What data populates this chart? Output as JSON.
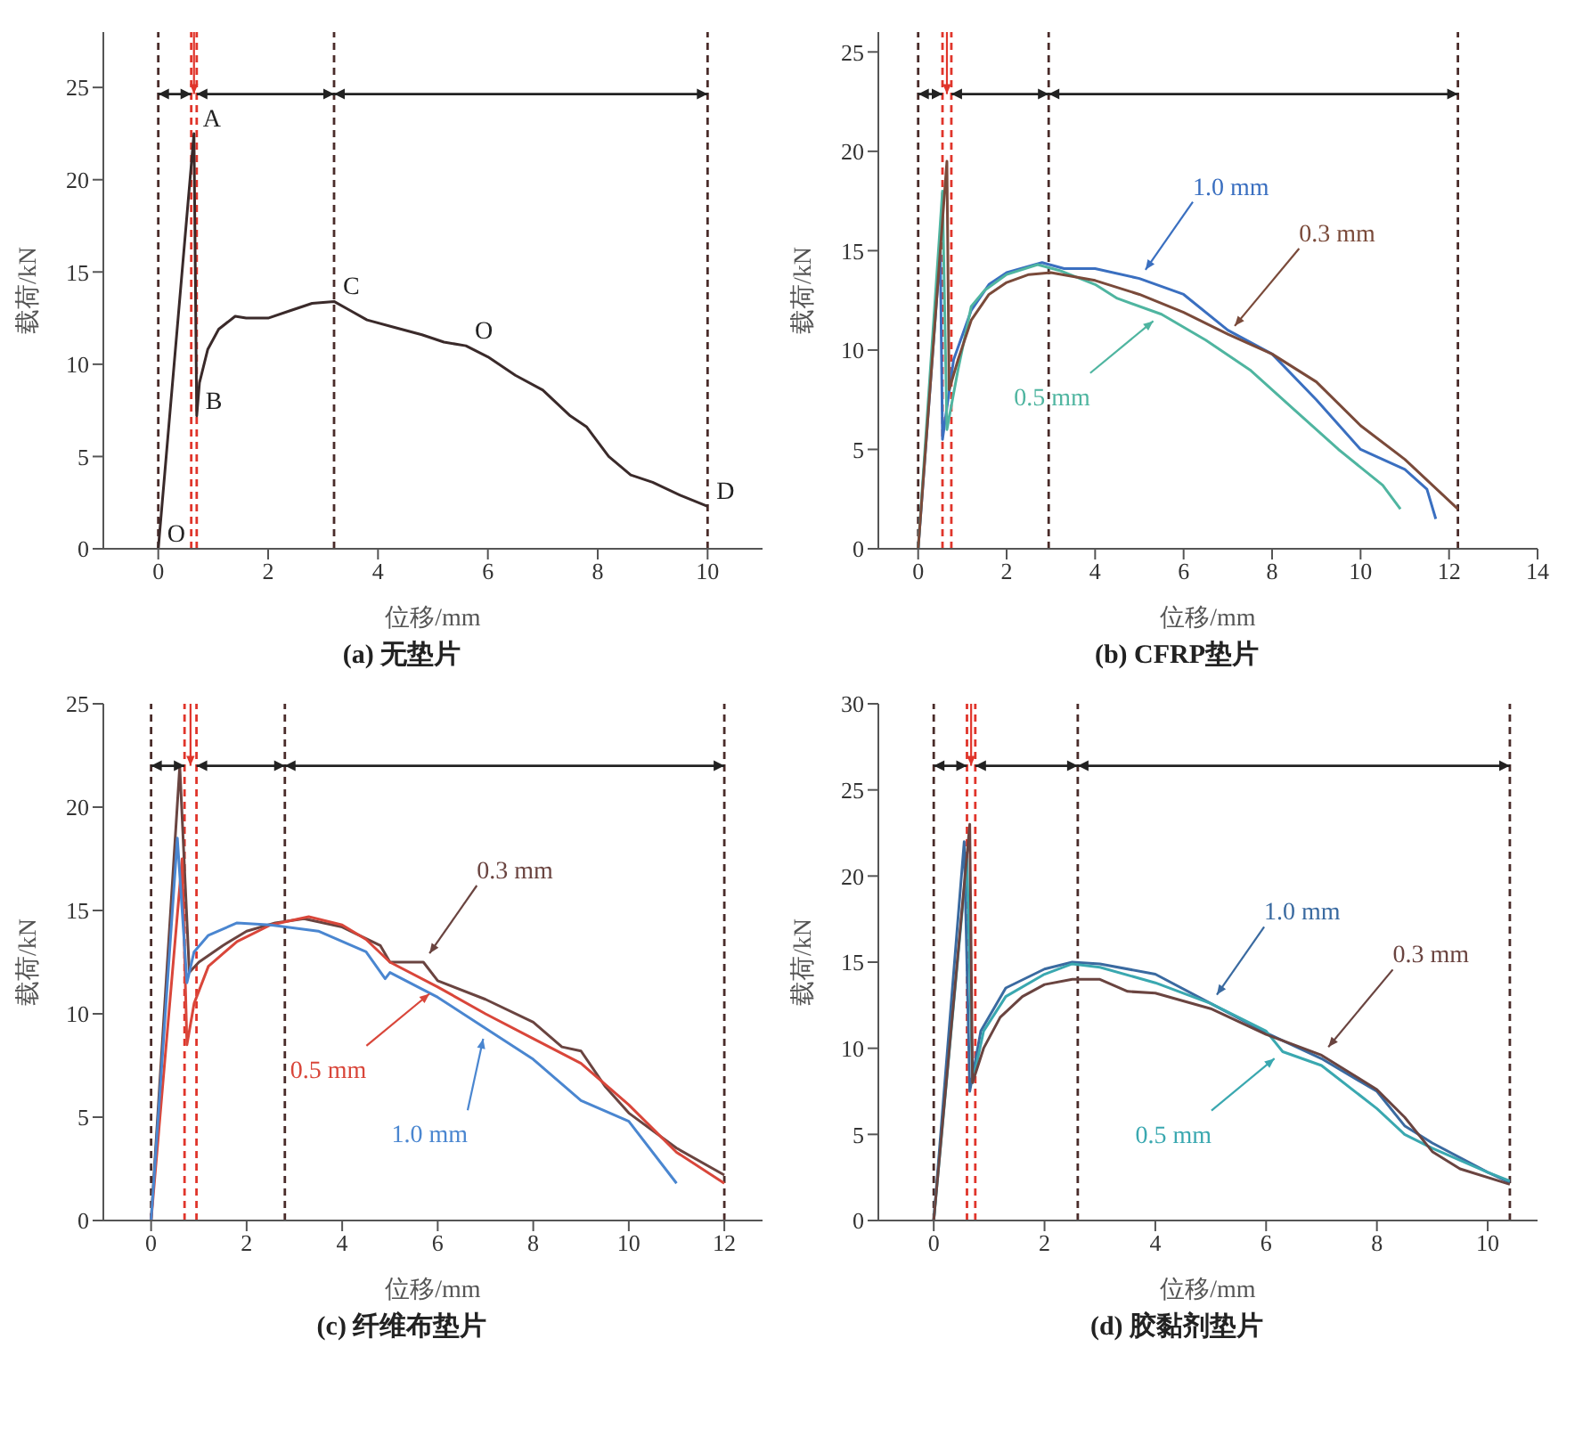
{
  "chart_data": [
    {
      "type": "line",
      "title": "(a) 无垫片",
      "xlabel": "位移/mm",
      "ylabel": "载荷/kN",
      "xlim": [
        -1,
        11
      ],
      "xticks": [
        0,
        2,
        4,
        6,
        8,
        10
      ],
      "ylim": [
        0,
        28
      ],
      "yticks": [
        0,
        5,
        10,
        15,
        20,
        25
      ],
      "series": [
        {
          "color": "#3a2a2a",
          "x": [
            0,
            0.65,
            0.7,
            0.75,
            0.9,
            1.1,
            1.4,
            1.6,
            2,
            2.4,
            2.8,
            3.2,
            3.5,
            3.8,
            4.3,
            4.8,
            5.2,
            5.6,
            6,
            6.5,
            7,
            7.5,
            7.8,
            8.2,
            8.6,
            9,
            9.5,
            10
          ],
          "values": [
            0,
            22.5,
            7.2,
            9,
            10.8,
            11.9,
            12.6,
            12.5,
            12.5,
            12.9,
            13.3,
            13.4,
            12.9,
            12.4,
            12,
            11.6,
            11.2,
            11,
            10.4,
            9.4,
            8.6,
            7.2,
            6.6,
            5,
            4,
            3.6,
            2.9,
            2.3
          ]
        }
      ],
      "ref_lines": [
        {
          "axis": "x",
          "value": 0,
          "color": "#4a2c2a",
          "line_style": "dashed"
        },
        {
          "axis": "x",
          "value": 0.6,
          "color": "#e0352b",
          "line_style": "dashed"
        },
        {
          "axis": "x",
          "value": 0.7,
          "color": "#e0352b",
          "line_style": "dashed"
        },
        {
          "axis": "x",
          "value": 3.2,
          "color": "#4a2c2a",
          "line_style": "dashed"
        },
        {
          "axis": "x",
          "value": 10,
          "color": "#4a2c2a",
          "line_style": "dashed"
        }
      ],
      "annotations": [
        {
          "text": "O",
          "x": 0,
          "y": 0
        },
        {
          "text": "A",
          "x": 0.65,
          "y": 22.5
        },
        {
          "text": "B",
          "x": 0.7,
          "y": 7.2
        },
        {
          "text": "C",
          "x": 3.2,
          "y": 13.4
        },
        {
          "text": "O",
          "x": 5.6,
          "y": 11
        },
        {
          "text": "D",
          "x": 10,
          "y": 2.3
        }
      ]
    },
    {
      "type": "line",
      "title": "(b) CFRP垫片",
      "xlabel": "位移/mm",
      "ylabel": "载荷/kN",
      "xlim": [
        -0.9,
        14
      ],
      "xticks": [
        0,
        2,
        4,
        6,
        8,
        10,
        12,
        14
      ],
      "ylim": [
        0,
        26
      ],
      "yticks": [
        0,
        5,
        10,
        15,
        20,
        25
      ],
      "series": [
        {
          "name": "1.0 mm",
          "color": "#3a6fc0",
          "x": [
            0,
            0.5,
            0.55,
            0.8,
            1.2,
            1.6,
            2,
            2.8,
            3.3,
            4,
            5,
            6,
            7,
            8,
            9,
            10,
            11,
            11.5,
            11.7
          ],
          "values": [
            0,
            15,
            5.5,
            9.5,
            12,
            13.3,
            13.9,
            14.4,
            14.1,
            14.1,
            13.6,
            12.8,
            11,
            9.8,
            7.5,
            5,
            4,
            3,
            1.5
          ]
        },
        {
          "name": "0.5 mm",
          "color": "#4fb5a0",
          "x": [
            0,
            0.55,
            0.65,
            0.9,
            1.2,
            1.5,
            2,
            2.7,
            3.2,
            4,
            4.5,
            5.5,
            6.5,
            7.5,
            8.5,
            9.5,
            10.5,
            10.9
          ],
          "values": [
            0,
            18,
            6,
            9,
            12.2,
            13,
            13.8,
            14.3,
            14,
            13.3,
            12.6,
            11.8,
            10.5,
            9,
            7,
            5,
            3.2,
            2
          ]
        },
        {
          "name": "0.3 mm",
          "color": "#7a4a3a",
          "x": [
            0,
            0.65,
            0.7,
            0.9,
            1.2,
            1.6,
            2,
            2.5,
            3,
            4,
            5,
            6,
            7,
            8,
            9,
            10,
            11,
            12.2
          ],
          "values": [
            0,
            19.5,
            8,
            9.5,
            11.5,
            12.8,
            13.4,
            13.8,
            13.9,
            13.5,
            12.8,
            11.9,
            10.8,
            9.8,
            8.4,
            6.2,
            4.5,
            2
          ]
        }
      ],
      "ref_lines": [
        {
          "axis": "x",
          "value": 0,
          "color": "#4a2c2a",
          "line_style": "dashed"
        },
        {
          "axis": "x",
          "value": 0.55,
          "color": "#e0352b",
          "line_style": "dashed"
        },
        {
          "axis": "x",
          "value": 0.75,
          "color": "#e0352b",
          "line_style": "dashed"
        },
        {
          "axis": "x",
          "value": 2.95,
          "color": "#4a2c2a",
          "line_style": "dashed"
        },
        {
          "axis": "x",
          "value": 12.2,
          "color": "#4a2c2a",
          "line_style": "dashed"
        }
      ]
    },
    {
      "type": "line",
      "title": "(c) 纤维布垫片",
      "xlabel": "位移/mm",
      "ylabel": "载荷/kN",
      "xlim": [
        -1,
        12.8
      ],
      "xticks": [
        0,
        2,
        4,
        6,
        8,
        10,
        12
      ],
      "ylim": [
        0,
        25
      ],
      "yticks": [
        0,
        5,
        10,
        15,
        20,
        25
      ],
      "series": [
        {
          "name": "0.3 mm",
          "color": "#6a4440",
          "x": [
            0,
            0.6,
            0.8,
            1,
            1.5,
            2,
            2.6,
            3.2,
            4,
            4.8,
            5,
            5.7,
            6,
            7,
            8,
            8.6,
            9,
            9.5,
            10,
            11,
            12
          ],
          "values": [
            0,
            22,
            12,
            12.5,
            13.3,
            14,
            14.4,
            14.6,
            14.2,
            13.3,
            12.5,
            12.5,
            11.6,
            10.7,
            9.6,
            8.4,
            8.2,
            6.5,
            5.2,
            3.5,
            2.2
          ]
        },
        {
          "name": "0.5 mm",
          "color": "#d9463a",
          "x": [
            0,
            0.65,
            0.75,
            0.9,
            1.2,
            1.8,
            2.5,
            3.3,
            4,
            4.5,
            5,
            6,
            7,
            8,
            9,
            10,
            11,
            12
          ],
          "values": [
            0,
            17.5,
            8.5,
            10.5,
            12.3,
            13.5,
            14.3,
            14.7,
            14.3,
            13.6,
            12.5,
            11.3,
            10,
            8.8,
            7.6,
            5.6,
            3.3,
            1.8
          ]
        },
        {
          "name": "1.0 mm",
          "color": "#4a86d0",
          "x": [
            0,
            0.55,
            0.75,
            0.9,
            1.2,
            1.8,
            2.5,
            3.5,
            4.5,
            4.9,
            5,
            6,
            7,
            8,
            9,
            10,
            11
          ],
          "values": [
            0,
            18.5,
            11.5,
            13,
            13.8,
            14.4,
            14.3,
            14,
            13,
            11.7,
            12,
            10.8,
            9.3,
            7.8,
            5.8,
            4.8,
            1.8
          ]
        }
      ],
      "ref_lines": [
        {
          "axis": "x",
          "value": 0,
          "color": "#4a2c2a",
          "line_style": "dashed"
        },
        {
          "axis": "x",
          "value": 0.7,
          "color": "#e0352b",
          "line_style": "dashed"
        },
        {
          "axis": "x",
          "value": 0.95,
          "color": "#e0352b",
          "line_style": "dashed"
        },
        {
          "axis": "x",
          "value": 2.8,
          "color": "#4a2c2a",
          "line_style": "dashed"
        },
        {
          "axis": "x",
          "value": 12,
          "color": "#4a2c2a",
          "line_style": "dashed"
        }
      ]
    },
    {
      "type": "line",
      "title": "(d) 胶黏剂垫片",
      "xlabel": "位移/mm",
      "ylabel": "载荷/kN",
      "xlim": [
        -1,
        10.9
      ],
      "xticks": [
        0,
        2,
        4,
        6,
        8,
        10
      ],
      "ylim": [
        0,
        30
      ],
      "yticks": [
        0,
        5,
        10,
        15,
        20,
        25,
        30
      ],
      "series": [
        {
          "name": "1.0 mm",
          "color": "#3a6aa0",
          "x": [
            0,
            0.55,
            0.65,
            0.85,
            1.3,
            2,
            2.5,
            3,
            4,
            5,
            6,
            7,
            8,
            8.5,
            9,
            10,
            10.4
          ],
          "values": [
            0,
            22,
            7.5,
            11,
            13.5,
            14.6,
            15,
            14.9,
            14.3,
            12.6,
            10.9,
            9.4,
            7.5,
            5.5,
            4.5,
            2.8,
            2.2
          ]
        },
        {
          "name": "0.5 mm",
          "color": "#3aa8b0",
          "x": [
            0,
            0.6,
            0.7,
            0.9,
            1.3,
            2,
            2.5,
            3,
            4,
            5,
            6,
            6.3,
            7,
            8,
            8.5,
            9,
            10,
            10.4
          ],
          "values": [
            0,
            21,
            8,
            11,
            13,
            14.3,
            14.9,
            14.7,
            13.8,
            12.6,
            11,
            9.8,
            9,
            6.5,
            5,
            4.2,
            2.8,
            2.3
          ]
        },
        {
          "name": "0.3 mm",
          "color": "#6a4440",
          "x": [
            0,
            0.65,
            0.7,
            0.9,
            1.2,
            1.6,
            2,
            2.5,
            3,
            3.5,
            4,
            5,
            6,
            7,
            8,
            8.5,
            9,
            9.5,
            10.4
          ],
          "values": [
            0,
            23,
            8,
            10,
            11.8,
            13,
            13.7,
            14,
            14,
            13.3,
            13.2,
            12.3,
            10.8,
            9.6,
            7.6,
            6,
            4,
            3,
            2.1
          ]
        }
      ],
      "ref_lines": [
        {
          "axis": "x",
          "value": 0,
          "color": "#4a2c2a",
          "line_style": "dashed"
        },
        {
          "axis": "x",
          "value": 0.6,
          "color": "#e0352b",
          "line_style": "dashed"
        },
        {
          "axis": "x",
          "value": 0.75,
          "color": "#e0352b",
          "line_style": "dashed"
        },
        {
          "axis": "x",
          "value": 2.6,
          "color": "#4a2c2a",
          "line_style": "dashed"
        },
        {
          "axis": "x",
          "value": 10.4,
          "color": "#4a2c2a",
          "line_style": "dashed"
        }
      ]
    }
  ]
}
